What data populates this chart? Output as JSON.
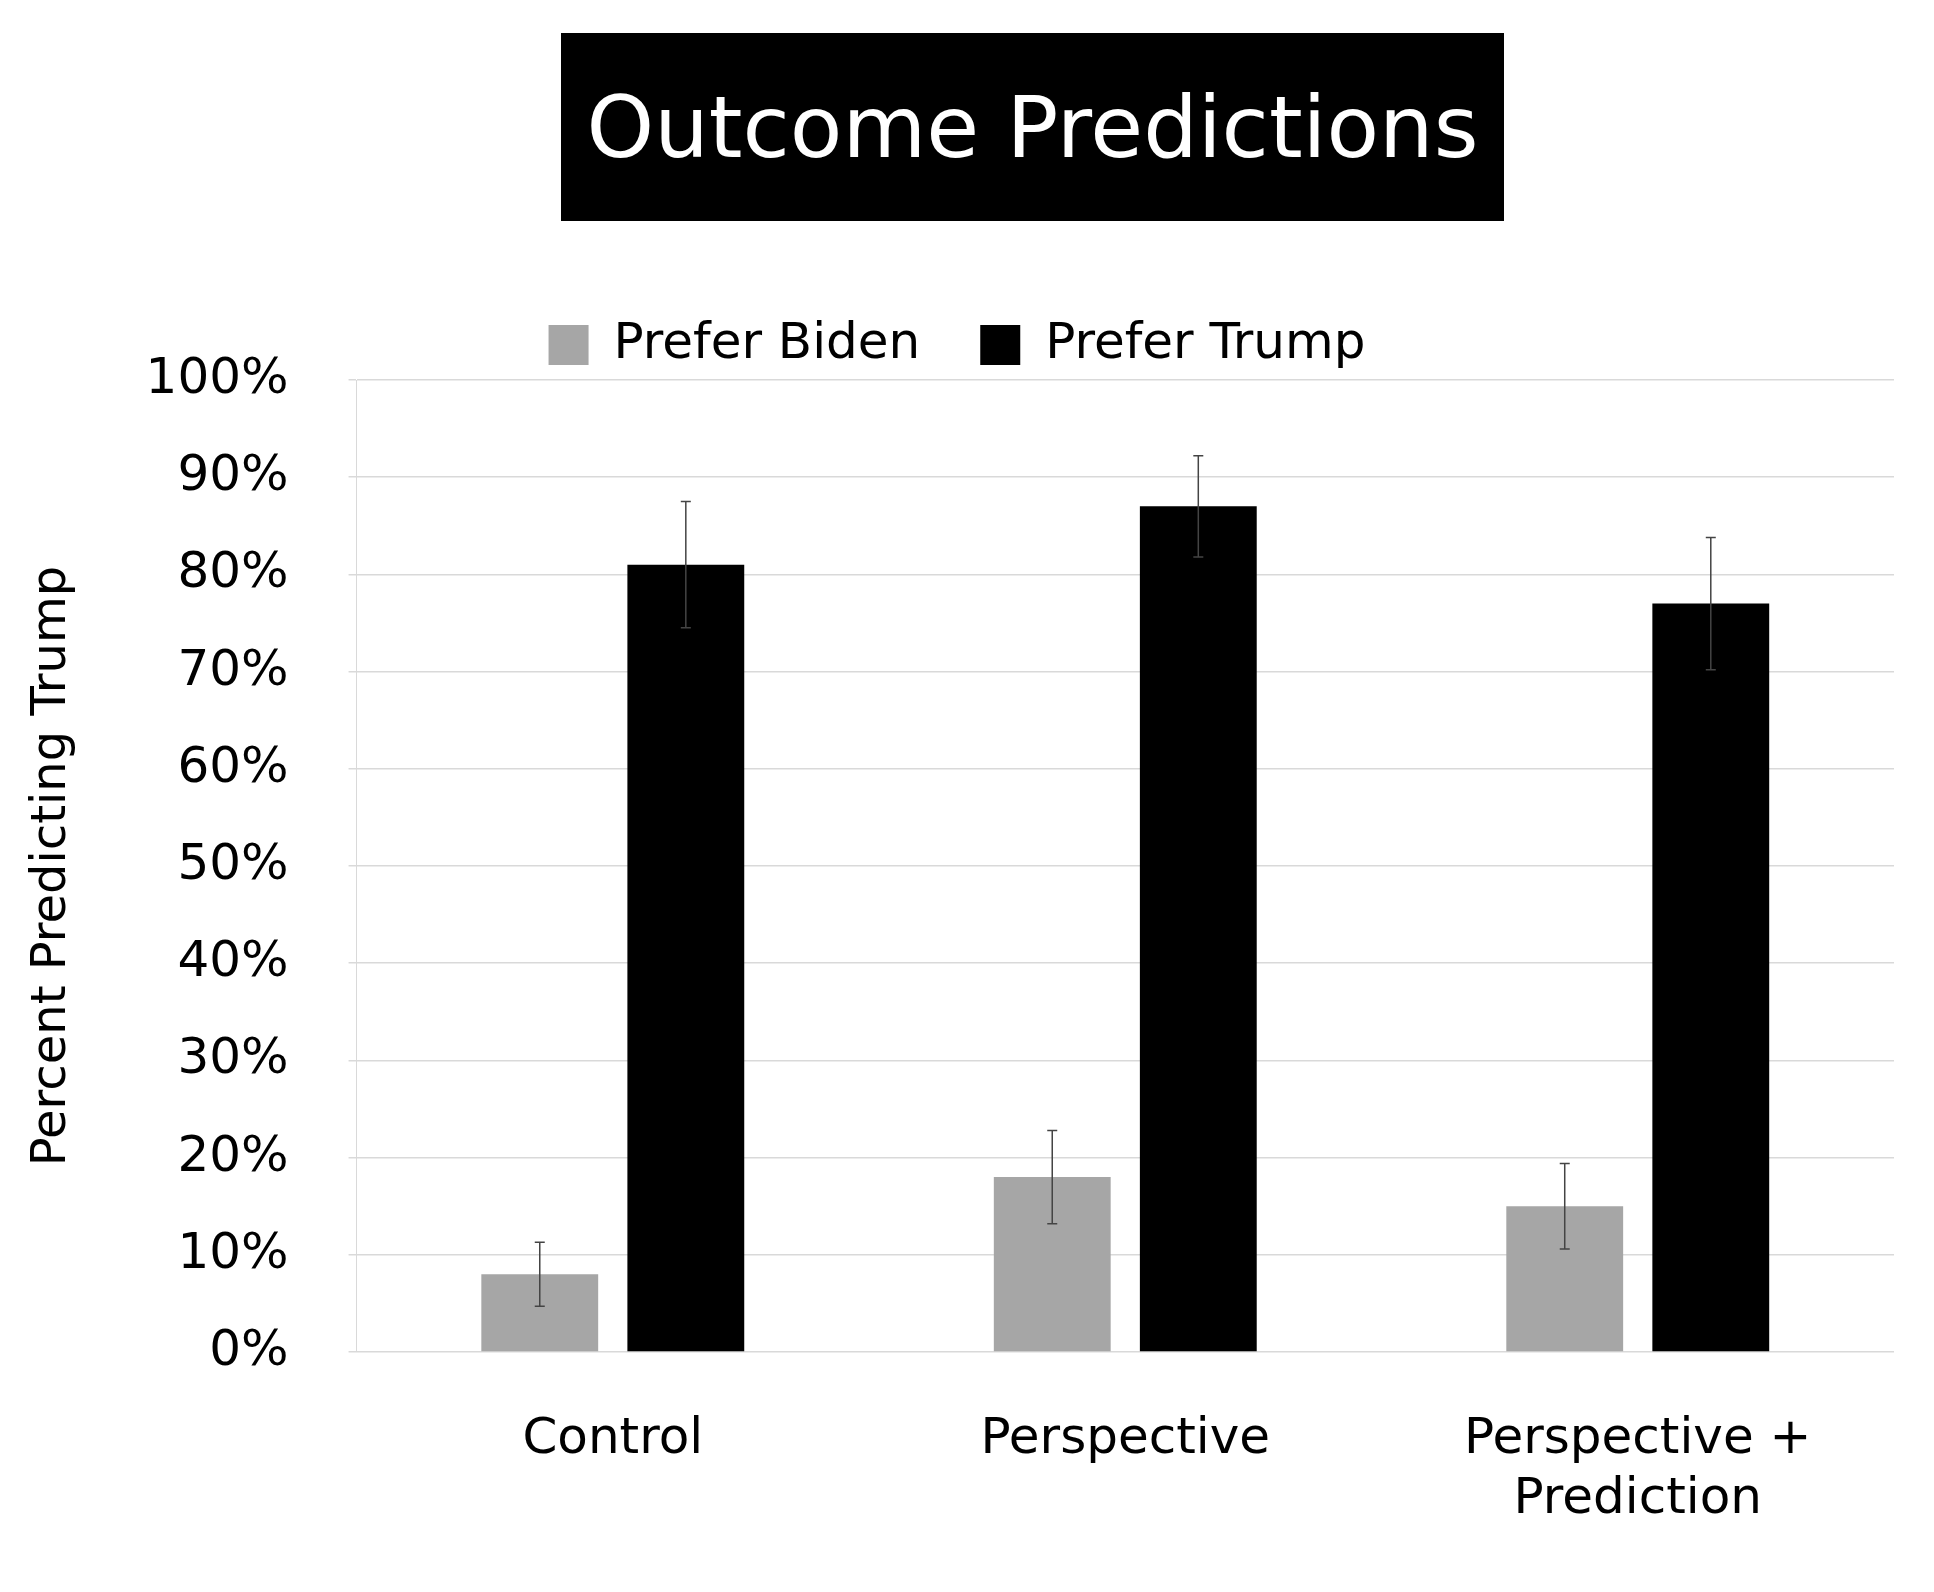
{
  "chart_data": {
    "type": "bar",
    "title": "Outcome Predictions",
    "ylabel": "Percent Predicting Trump",
    "categories": [
      "Control",
      "Perspective",
      "Perspective + Prediction"
    ],
    "series": [
      {
        "name": "Prefer Biden",
        "color": "#a6a6a6",
        "values": [
          8,
          18,
          15
        ],
        "errors": [
          3.3,
          4.8,
          4.4
        ]
      },
      {
        "name": "Prefer Trump",
        "color": "#000000",
        "values": [
          81,
          87,
          77
        ],
        "errors": [
          6.5,
          5.2,
          6.8
        ]
      }
    ],
    "ylim": [
      0,
      100
    ],
    "yticks": [
      {
        "value": 0,
        "label": "0%"
      },
      {
        "value": 10,
        "label": "10%"
      },
      {
        "value": 20,
        "label": "20%"
      },
      {
        "value": 30,
        "label": "30%"
      },
      {
        "value": 40,
        "label": "40%"
      },
      {
        "value": 50,
        "label": "50%"
      },
      {
        "value": 60,
        "label": "60%"
      },
      {
        "value": 70,
        "label": "70%"
      },
      {
        "value": 80,
        "label": "80%"
      },
      {
        "value": 90,
        "label": "90%"
      },
      {
        "value": 100,
        "label": "100%"
      }
    ],
    "grid": "y",
    "legend": "top"
  }
}
